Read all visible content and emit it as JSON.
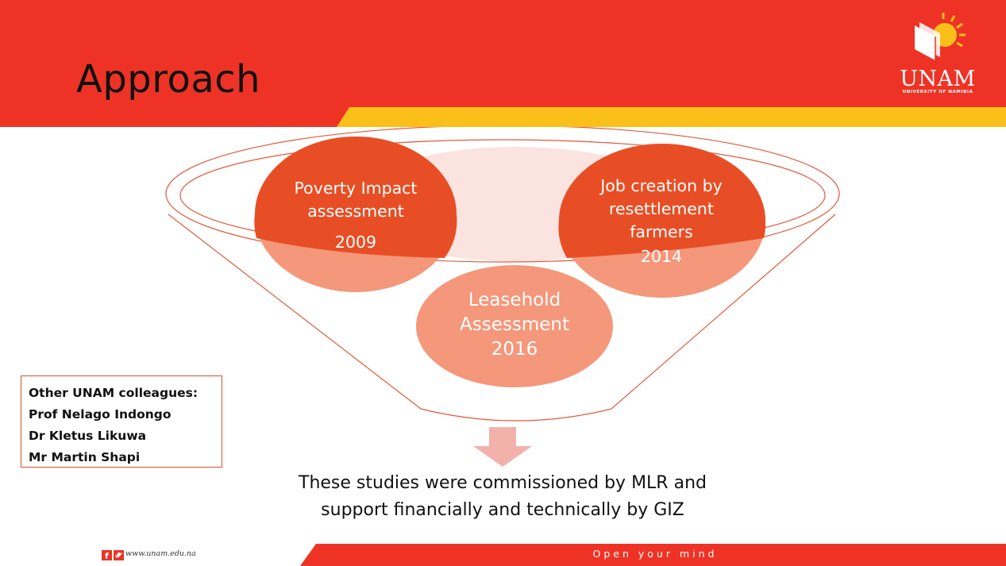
{
  "slide": {
    "title": "Approach",
    "logo": {
      "name": "UNAM",
      "subtitle": "UNIVERSITY OF NAMIBIA"
    }
  },
  "diagram": {
    "studies": [
      {
        "lines": [
          "Poverty Impact",
          "assessment"
        ],
        "year": "2009"
      },
      {
        "lines": [
          "Job creation by",
          "resettlement",
          "farmers"
        ],
        "year": "2014"
      },
      {
        "lines": [
          "Leasehold",
          "Assessment"
        ],
        "year": "2016"
      }
    ]
  },
  "colleagues": {
    "heading": "Other UNAM colleagues:",
    "names": [
      "Prof Nelago Indongo",
      "Dr Kletus Likuwa",
      "Mr Martin Shapi"
    ]
  },
  "statement": {
    "line1": "These studies were commissioned by MLR and",
    "line2": "support financially and technically by GIZ"
  },
  "footer": {
    "url": "www.unam.edu.na",
    "tagline": "Open your mind"
  },
  "colors": {
    "brand_red": "#ee3326",
    "brand_gold": "#fbbf1a",
    "circle_dark": "#e84e25",
    "circle_light": "#f4977a",
    "funnel_line": "#e05a3a"
  },
  "icons": [
    "facebook-icon",
    "twitter-icon",
    "book-sun-logo-icon",
    "down-arrow-icon"
  ]
}
